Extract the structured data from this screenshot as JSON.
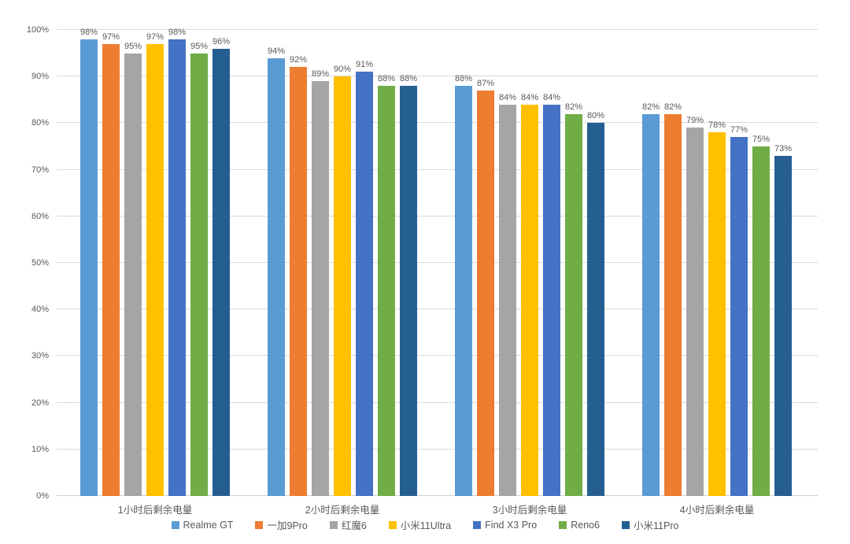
{
  "chart_data": {
    "type": "bar",
    "title": "",
    "categories": [
      "1小时后剩余电量",
      "2小时后剩余电量",
      "3小时后剩余电量",
      "4小时后剩余电量"
    ],
    "series": [
      {
        "name": "Realme GT",
        "color": "#5B9BD5",
        "values": [
          98,
          94,
          88,
          82
        ]
      },
      {
        "name": "一加9Pro",
        "color": "#ED7D31",
        "values": [
          97,
          92,
          87,
          82
        ]
      },
      {
        "name": "红魔6",
        "color": "#A5A5A5",
        "values": [
          95,
          89,
          84,
          79
        ]
      },
      {
        "name": "小米11Ultra",
        "color": "#FFC000",
        "values": [
          97,
          90,
          84,
          78
        ]
      },
      {
        "name": "Find X3 Pro",
        "color": "#4472C4",
        "values": [
          98,
          91,
          84,
          77
        ]
      },
      {
        "name": "Reno6",
        "color": "#70AD47",
        "values": [
          95,
          88,
          82,
          75
        ]
      },
      {
        "name": "小米11Pro",
        "color": "#255E91",
        "values": [
          96,
          88,
          80,
          73
        ]
      }
    ],
    "data_labels": [
      [
        "98%",
        "94%",
        "88%",
        "82%"
      ],
      [
        "97%",
        "92%",
        "87%",
        "82%"
      ],
      [
        "95%",
        "89%",
        "84%",
        "79%"
      ],
      [
        "97%",
        "90%",
        "84%",
        "78%"
      ],
      [
        "98%",
        "91%",
        "84%",
        "77%"
      ],
      [
        "95%",
        "88%",
        "82%",
        "75%"
      ],
      [
        "96%",
        "88%",
        "80%",
        "73%"
      ]
    ],
    "xlabel": "",
    "ylabel": "",
    "y_axis": {
      "min": 0,
      "max": 100,
      "step": 10,
      "ticks": [
        "0%",
        "10%",
        "20%",
        "30%",
        "40%",
        "50%",
        "60%",
        "70%",
        "80%",
        "90%",
        "100%"
      ]
    },
    "grid": true,
    "legend_position": "bottom",
    "colors": {
      "axis_text": "#595959",
      "gridline": "#D9D9D9",
      "background": "#FFFFFF"
    }
  }
}
